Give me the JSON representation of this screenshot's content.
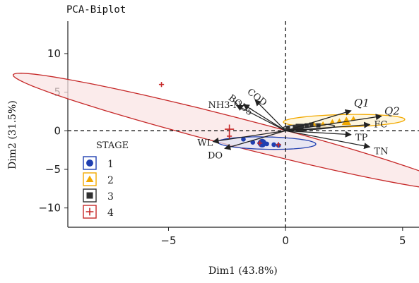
{
  "chart_data": {
    "type": "scatter",
    "title": "PCA-Biplot",
    "xlabel": "Dim1 (43.8%)",
    "ylabel": "Dim2 (31.5%)",
    "xlim": [
      -9.3,
      5.7
    ],
    "ylim": [
      -12.5,
      14.2
    ],
    "xticks": [
      -5,
      0,
      5
    ],
    "yticks": [
      -10,
      -5,
      0,
      5,
      10
    ],
    "xtick_labels": [
      "−5",
      "0",
      "5"
    ],
    "ytick_labels": [
      "−10",
      "−5",
      "0",
      "5",
      "10"
    ],
    "reference_lines": [
      {
        "axis": "x",
        "value": 0,
        "style": "dashed"
      },
      {
        "axis": "y",
        "value": 0,
        "style": "dashed"
      }
    ],
    "legend": {
      "title": "STAGE",
      "placement": "bottom-left",
      "entries": [
        {
          "label": "1",
          "marker": "circle",
          "color": "#1f3fb0"
        },
        {
          "label": "2",
          "marker": "triangle",
          "color": "#f2a900"
        },
        {
          "label": "3",
          "marker": "square",
          "color": "#303030"
        },
        {
          "label": "4",
          "marker": "plus",
          "color": "#c62828"
        }
      ]
    },
    "series": [
      {
        "name": "1",
        "marker": "circle",
        "color": "#1f3fb0",
        "points": [
          [
            -1.8,
            -1.1
          ],
          [
            -1.4,
            -1.5
          ],
          [
            -1.1,
            -1.6
          ],
          [
            -0.8,
            -1.7
          ],
          [
            -0.5,
            -1.8
          ],
          [
            -0.3,
            -1.9
          ],
          [
            -1.0,
            -1.8
          ]
        ],
        "centroid": [
          -1.0,
          -1.6
        ],
        "ellipse": {
          "center": [
            -0.8,
            -1.6
          ],
          "rx": 2.1,
          "ry": 0.8,
          "angle_deg": -4,
          "color": "#1f3fb0",
          "fill": "#dfe4f5"
        }
      },
      {
        "name": "2",
        "marker": "triangle",
        "color": "#f2a900",
        "points": [
          [
            1.2,
            0.9
          ],
          [
            1.6,
            0.9
          ],
          [
            2.0,
            1.2
          ],
          [
            2.3,
            1.3
          ],
          [
            2.6,
            1.5
          ],
          [
            2.9,
            1.6
          ]
        ],
        "centroid": [
          2.6,
          1.2
        ],
        "ellipse": {
          "center": [
            2.5,
            1.3
          ],
          "rx": 2.6,
          "ry": 0.8,
          "angle_deg": 4,
          "color": "#f2a900",
          "fill": "#fdf2d0"
        }
      },
      {
        "name": "3",
        "marker": "square",
        "color": "#303030",
        "points": [
          [
            0.1,
            0.3
          ],
          [
            0.4,
            0.4
          ],
          [
            0.7,
            0.6
          ],
          [
            0.9,
            0.7
          ],
          [
            1.1,
            0.8
          ],
          [
            1.4,
            0.7
          ]
        ],
        "centroid": [
          0.6,
          0.4
        ],
        "ellipse": {
          "center": [
            1.0,
            0.5
          ],
          "rx": 1.1,
          "ry": 0.35,
          "angle_deg": 6,
          "color": "#303030",
          "fill": "#e6e6e6"
        }
      },
      {
        "name": "4",
        "marker": "plus",
        "color": "#c62828",
        "points": [
          [
            -5.3,
            6.0
          ],
          [
            -2.4,
            -0.7
          ],
          [
            -1.1,
            -1.6
          ],
          [
            -0.3,
            -1.8
          ]
        ],
        "centroid": [
          -2.4,
          0.2
        ],
        "ellipse": {
          "center": [
            -2.2,
            -0.1
          ],
          "rx": 12.0,
          "ry": 1.5,
          "angle_deg": -38.5,
          "color": "#c62828",
          "fill": "#f9e3e3"
        }
      }
    ],
    "loadings": [
      {
        "name": "Q1",
        "x": 2.8,
        "y": 2.6,
        "italic": true
      },
      {
        "name": "Q2",
        "x": 4.1,
        "y": 1.9,
        "italic": true
      },
      {
        "name": "FC",
        "x": 3.6,
        "y": 0.8
      },
      {
        "name": "TP",
        "x": 2.8,
        "y": -0.5
      },
      {
        "name": "TN",
        "x": 3.6,
        "y": -2.1
      },
      {
        "name": "COD",
        "x": -1.3,
        "y": 4.0
      },
      {
        "name": "BOD5",
        "x": -1.8,
        "y": 3.4
      },
      {
        "name": "NH3-N",
        "x": -2.1,
        "y": 3.3
      },
      {
        "name": "WL",
        "x": -3.1,
        "y": -1.4
      },
      {
        "name": "DO",
        "x": -2.6,
        "y": -2.3
      }
    ]
  }
}
